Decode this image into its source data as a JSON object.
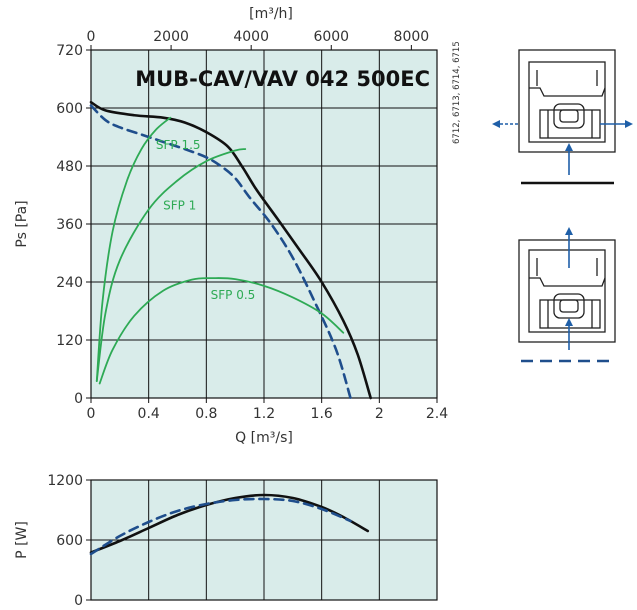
{
  "chart_data": [
    {
      "type": "line",
      "title": "MUB-CAV/VAV 042 500EC",
      "side_note": "6712, 6713, 6714, 6715",
      "xlabel": "Q [m³/s]",
      "ylabel": "Ps [Pa]",
      "x2label": "[m³/h]",
      "xlim": [
        0,
        2.4
      ],
      "ylim": [
        0,
        720
      ],
      "x2lim": [
        0,
        8640
      ],
      "xticks": [
        "0",
        "0.4",
        "0.8",
        "1.2",
        "1.6",
        "2",
        "2.4"
      ],
      "yticks": [
        "0",
        "120",
        "240",
        "360",
        "480",
        "600",
        "720"
      ],
      "x2ticks": [
        "0",
        "2000",
        "4000",
        "6000",
        "8000"
      ],
      "grid": true,
      "background": "#d9ecea",
      "series": [
        {
          "id": "solid",
          "color": "#111111",
          "style": "solid",
          "x": [
            0,
            0.1,
            0.3,
            0.5,
            0.65,
            0.8,
            0.95,
            1.05,
            1.15,
            1.3,
            1.45,
            1.6,
            1.75,
            1.85,
            1.94
          ],
          "y": [
            612,
            595,
            585,
            580,
            570,
            550,
            520,
            478,
            430,
            368,
            305,
            240,
            160,
            90,
            0
          ]
        },
        {
          "id": "dashed",
          "color": "#1f4e8c",
          "style": "dashed",
          "x": [
            0,
            0.1,
            0.2,
            0.35,
            0.5,
            0.65,
            0.8,
            0.9,
            1.0,
            1.1,
            1.25,
            1.4,
            1.55,
            1.7,
            1.8
          ],
          "y": [
            605,
            575,
            560,
            545,
            530,
            515,
            498,
            480,
            455,
            415,
            360,
            290,
            200,
            100,
            0
          ]
        },
        {
          "id": "sfp-1.5",
          "name": "SFP 1.5",
          "color": "#2eaa55",
          "style": "solid",
          "x": [
            0.04,
            0.08,
            0.15,
            0.25,
            0.35,
            0.45,
            0.55
          ],
          "y": [
            35,
            200,
            345,
            450,
            515,
            555,
            580
          ]
        },
        {
          "id": "sfp-1",
          "name": "SFP 1",
          "color": "#2eaa55",
          "style": "solid",
          "x": [
            0.04,
            0.1,
            0.2,
            0.4,
            0.6,
            0.8,
            1.0,
            1.07
          ],
          "y": [
            35,
            175,
            285,
            390,
            450,
            490,
            512,
            515
          ]
        },
        {
          "id": "sfp-0.5",
          "name": "SFP 0.5",
          "color": "#2eaa55",
          "style": "solid",
          "x": [
            0.06,
            0.15,
            0.3,
            0.5,
            0.7,
            0.85,
            1.0,
            1.2,
            1.4,
            1.6,
            1.75
          ],
          "y": [
            30,
            100,
            170,
            222,
            245,
            248,
            246,
            232,
            208,
            175,
            135
          ]
        }
      ],
      "curve_labels": [
        {
          "text": "SFP 1.5",
          "x": 0.45,
          "y": 515
        },
        {
          "text": "SFP 1",
          "x": 0.5,
          "y": 390
        },
        {
          "text": "SFP 0.5",
          "x": 0.83,
          "y": 205
        }
      ]
    },
    {
      "type": "line",
      "ylabel": "P [W]",
      "xlim": [
        0,
        2.4
      ],
      "ylim": [
        0,
        1200
      ],
      "yticks": [
        "0",
        "600",
        "1200"
      ],
      "grid": true,
      "background": "#d9ecea",
      "series": [
        {
          "id": "solid",
          "color": "#111111",
          "style": "solid",
          "x": [
            0,
            0.2,
            0.4,
            0.6,
            0.8,
            1.0,
            1.2,
            1.4,
            1.6,
            1.75,
            1.92
          ],
          "y": [
            475,
            590,
            720,
            850,
            950,
            1020,
            1050,
            1020,
            930,
            830,
            690
          ]
        },
        {
          "id": "dashed",
          "color": "#1f4e8c",
          "style": "dashed",
          "x": [
            0,
            0.2,
            0.4,
            0.6,
            0.8,
            1.0,
            1.2,
            1.4,
            1.6,
            1.8
          ],
          "y": [
            460,
            640,
            780,
            890,
            960,
            1000,
            1010,
            990,
            910,
            790
          ]
        }
      ]
    }
  ]
}
